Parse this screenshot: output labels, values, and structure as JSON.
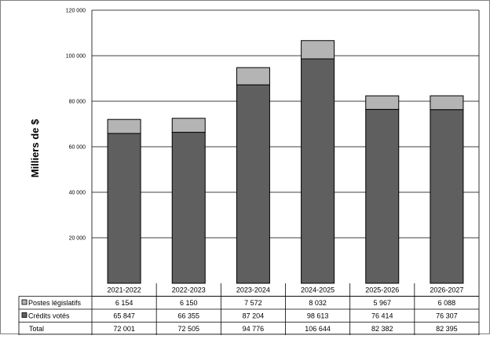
{
  "chart_data": {
    "type": "bar",
    "stacked": true,
    "ylabel": "Milliers de $",
    "ylim": [
      0,
      120000
    ],
    "yticks": [
      20000,
      40000,
      60000,
      80000,
      100000,
      120000
    ],
    "ytick_labels": [
      "20 000",
      "40 000",
      "60 000",
      "80 000",
      "100 000",
      "120 000"
    ],
    "grid": true,
    "legend": "table-rows",
    "categories": [
      "2021-2022",
      "2022-2023",
      "2023-2024",
      "2024-2025",
      "2025-2026",
      "2026-2027"
    ],
    "series": [
      {
        "name": "Crédits votés",
        "color": "#5f5f5f",
        "values": [
          65847,
          66355,
          87204,
          98613,
          76414,
          76307
        ],
        "labels": [
          "65 847",
          "66 355",
          "87 204",
          "98 613",
          "76 414",
          "76 307"
        ]
      },
      {
        "name": "Postes législatifs",
        "color": "#b4b4b4",
        "values": [
          6154,
          6150,
          7572,
          8032,
          5967,
          6088
        ],
        "labels": [
          "6 154",
          "6 150",
          "7 572",
          "8 032",
          "5 967",
          "6 088"
        ]
      }
    ],
    "total": {
      "name": "Total",
      "values": [
        72001,
        72505,
        94776,
        106644,
        82382,
        82395
      ],
      "labels": [
        "72 001",
        "72 505",
        "94 776",
        "106 644",
        "82 382",
        "82 395"
      ]
    }
  }
}
